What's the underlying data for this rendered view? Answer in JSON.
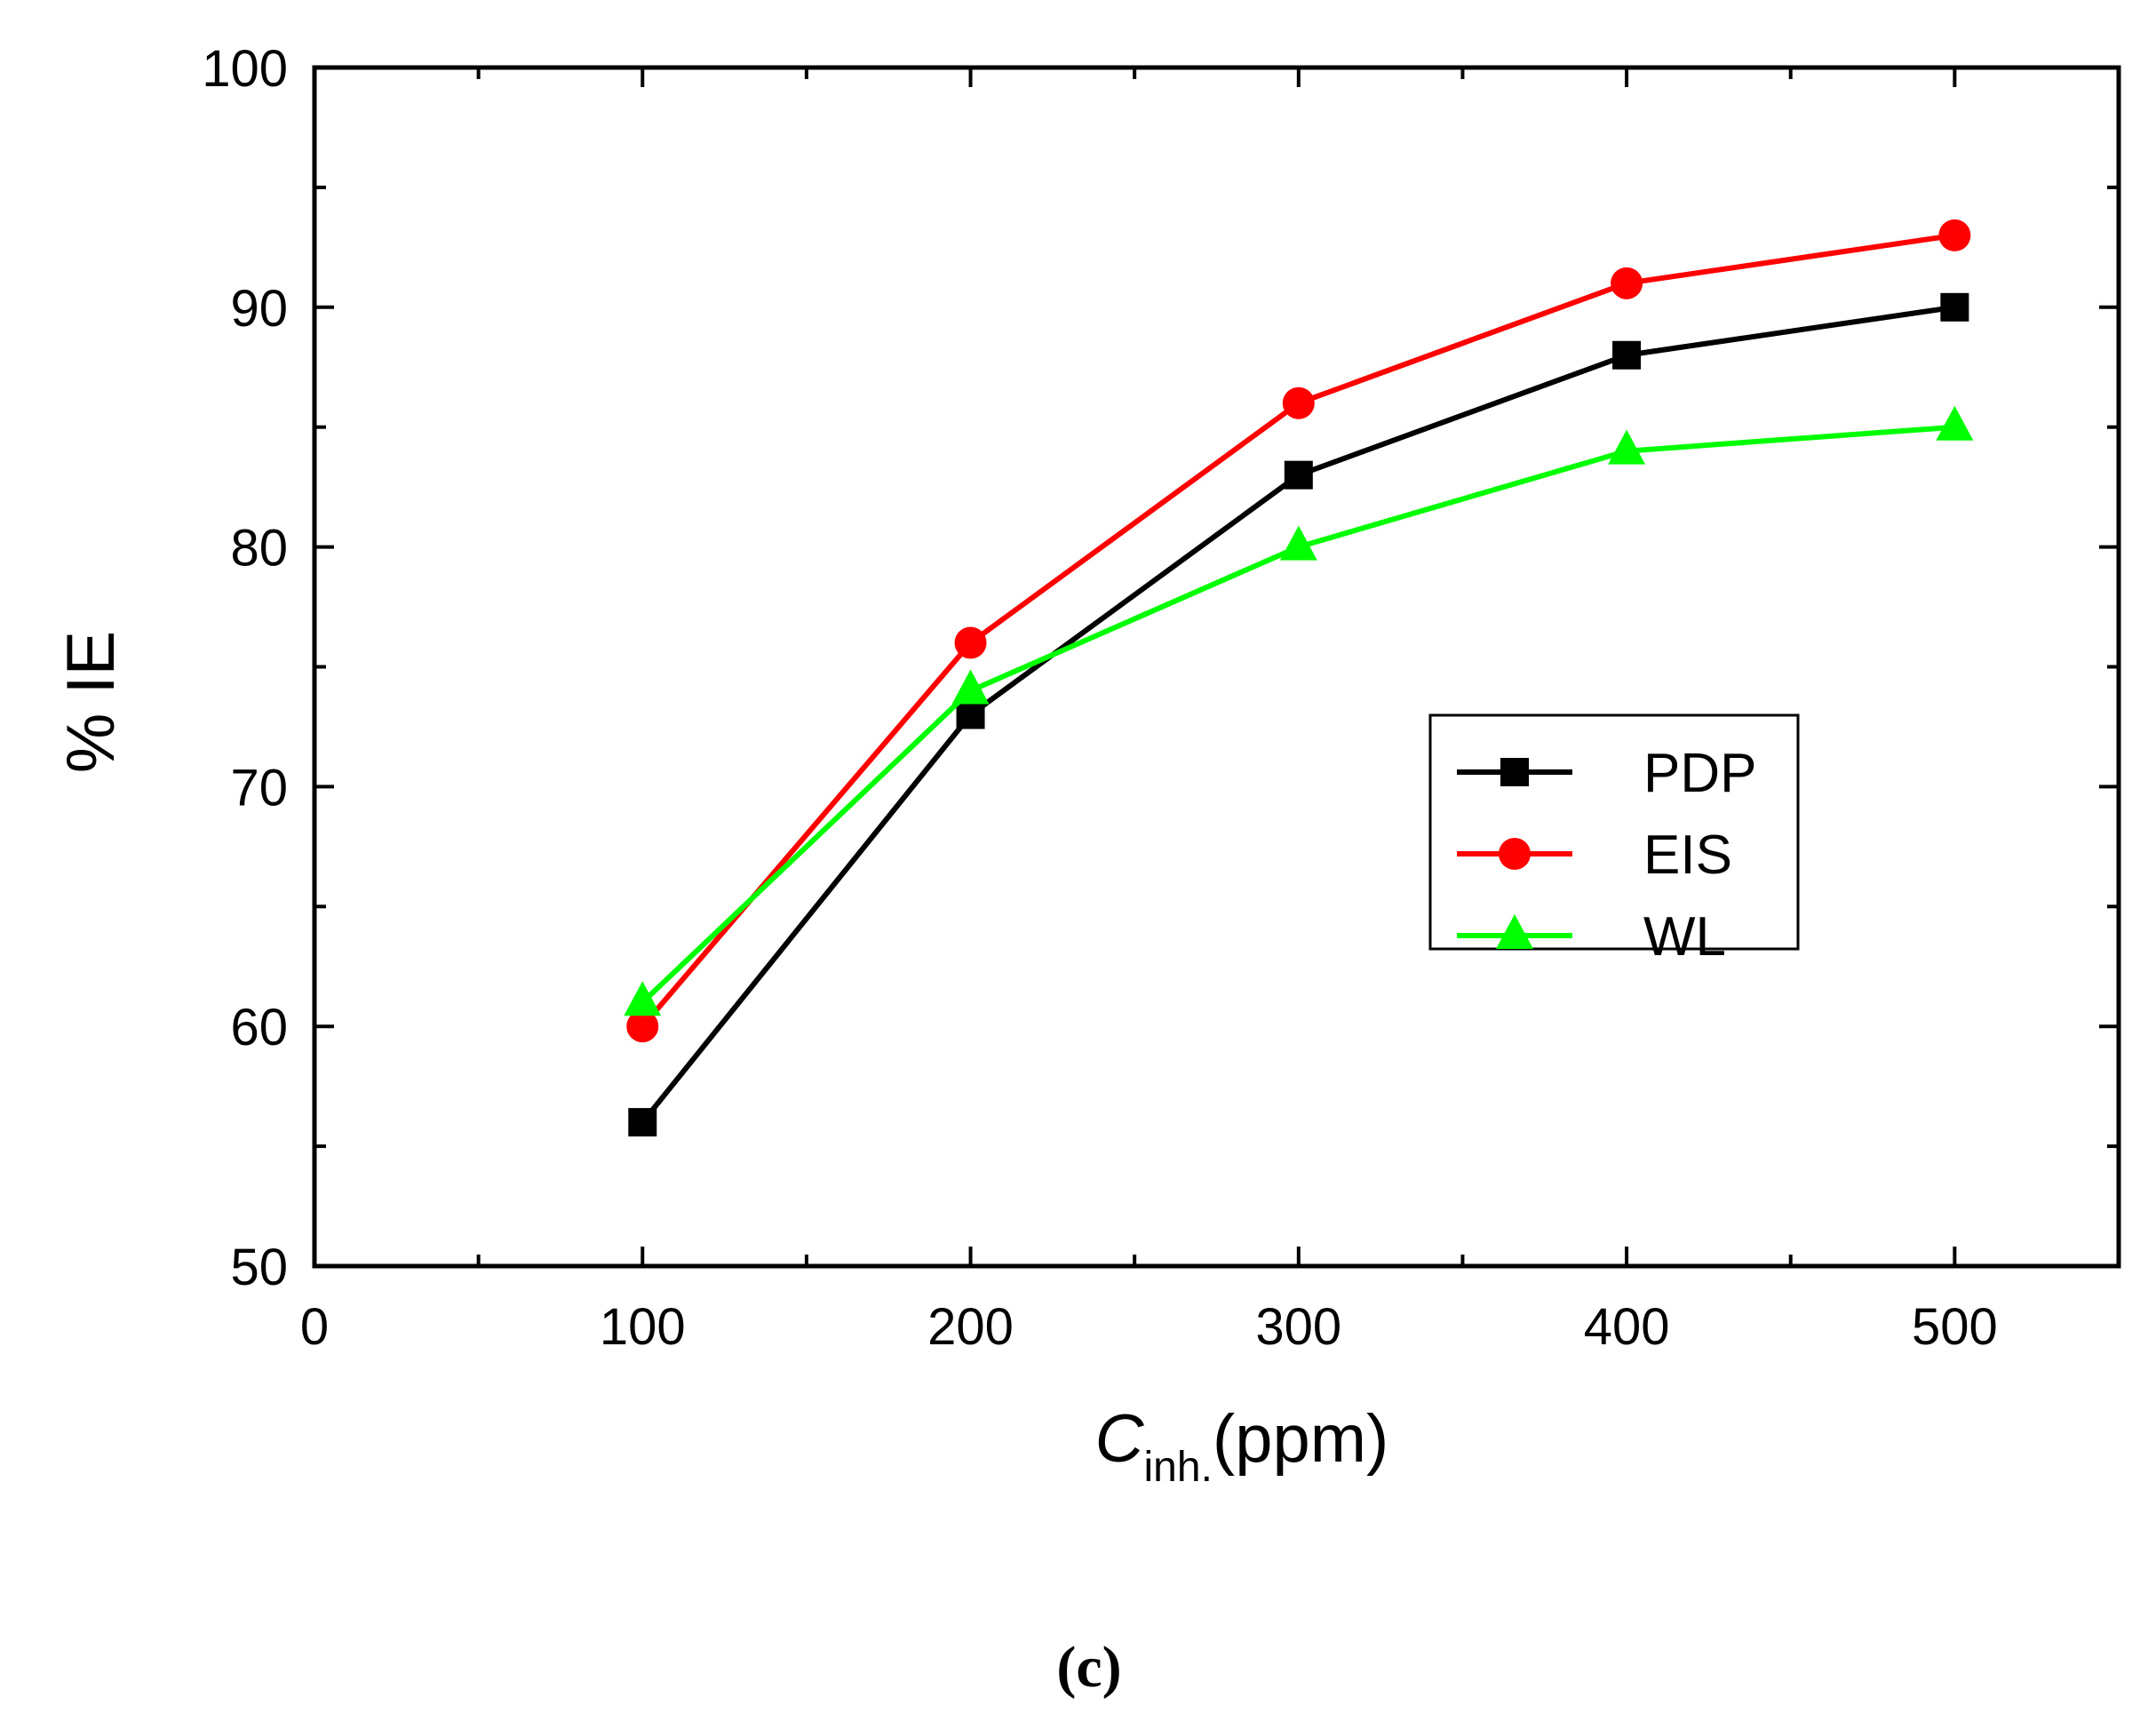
{
  "chart_data": {
    "type": "line",
    "title": "",
    "xlabel": {
      "main": "C",
      "subscript": "inh.",
      "unit": "(ppm)"
    },
    "ylabel": "% IE",
    "xlim": [
      0,
      550
    ],
    "ylim": [
      50,
      100
    ],
    "x_ticks": [
      0,
      100,
      200,
      300,
      400,
      500
    ],
    "y_ticks": [
      50,
      60,
      70,
      80,
      90,
      100
    ],
    "x_minor_step": 50,
    "y_minor_step": 5,
    "grid": false,
    "legend_position": "center-right",
    "x": [
      100,
      200,
      300,
      400,
      500
    ],
    "series": [
      {
        "name": "PDP",
        "values": [
          56,
          73,
          83,
          88,
          90
        ],
        "color": "#000000",
        "marker": "square"
      },
      {
        "name": "EIS",
        "values": [
          60,
          76,
          86,
          91,
          93
        ],
        "color": "#ff0000",
        "marker": "circle"
      },
      {
        "name": "WL",
        "values": [
          61,
          74,
          80,
          84,
          85
        ],
        "color": "#00ff00",
        "marker": "triangle"
      }
    ]
  },
  "panel_label": "(c)"
}
